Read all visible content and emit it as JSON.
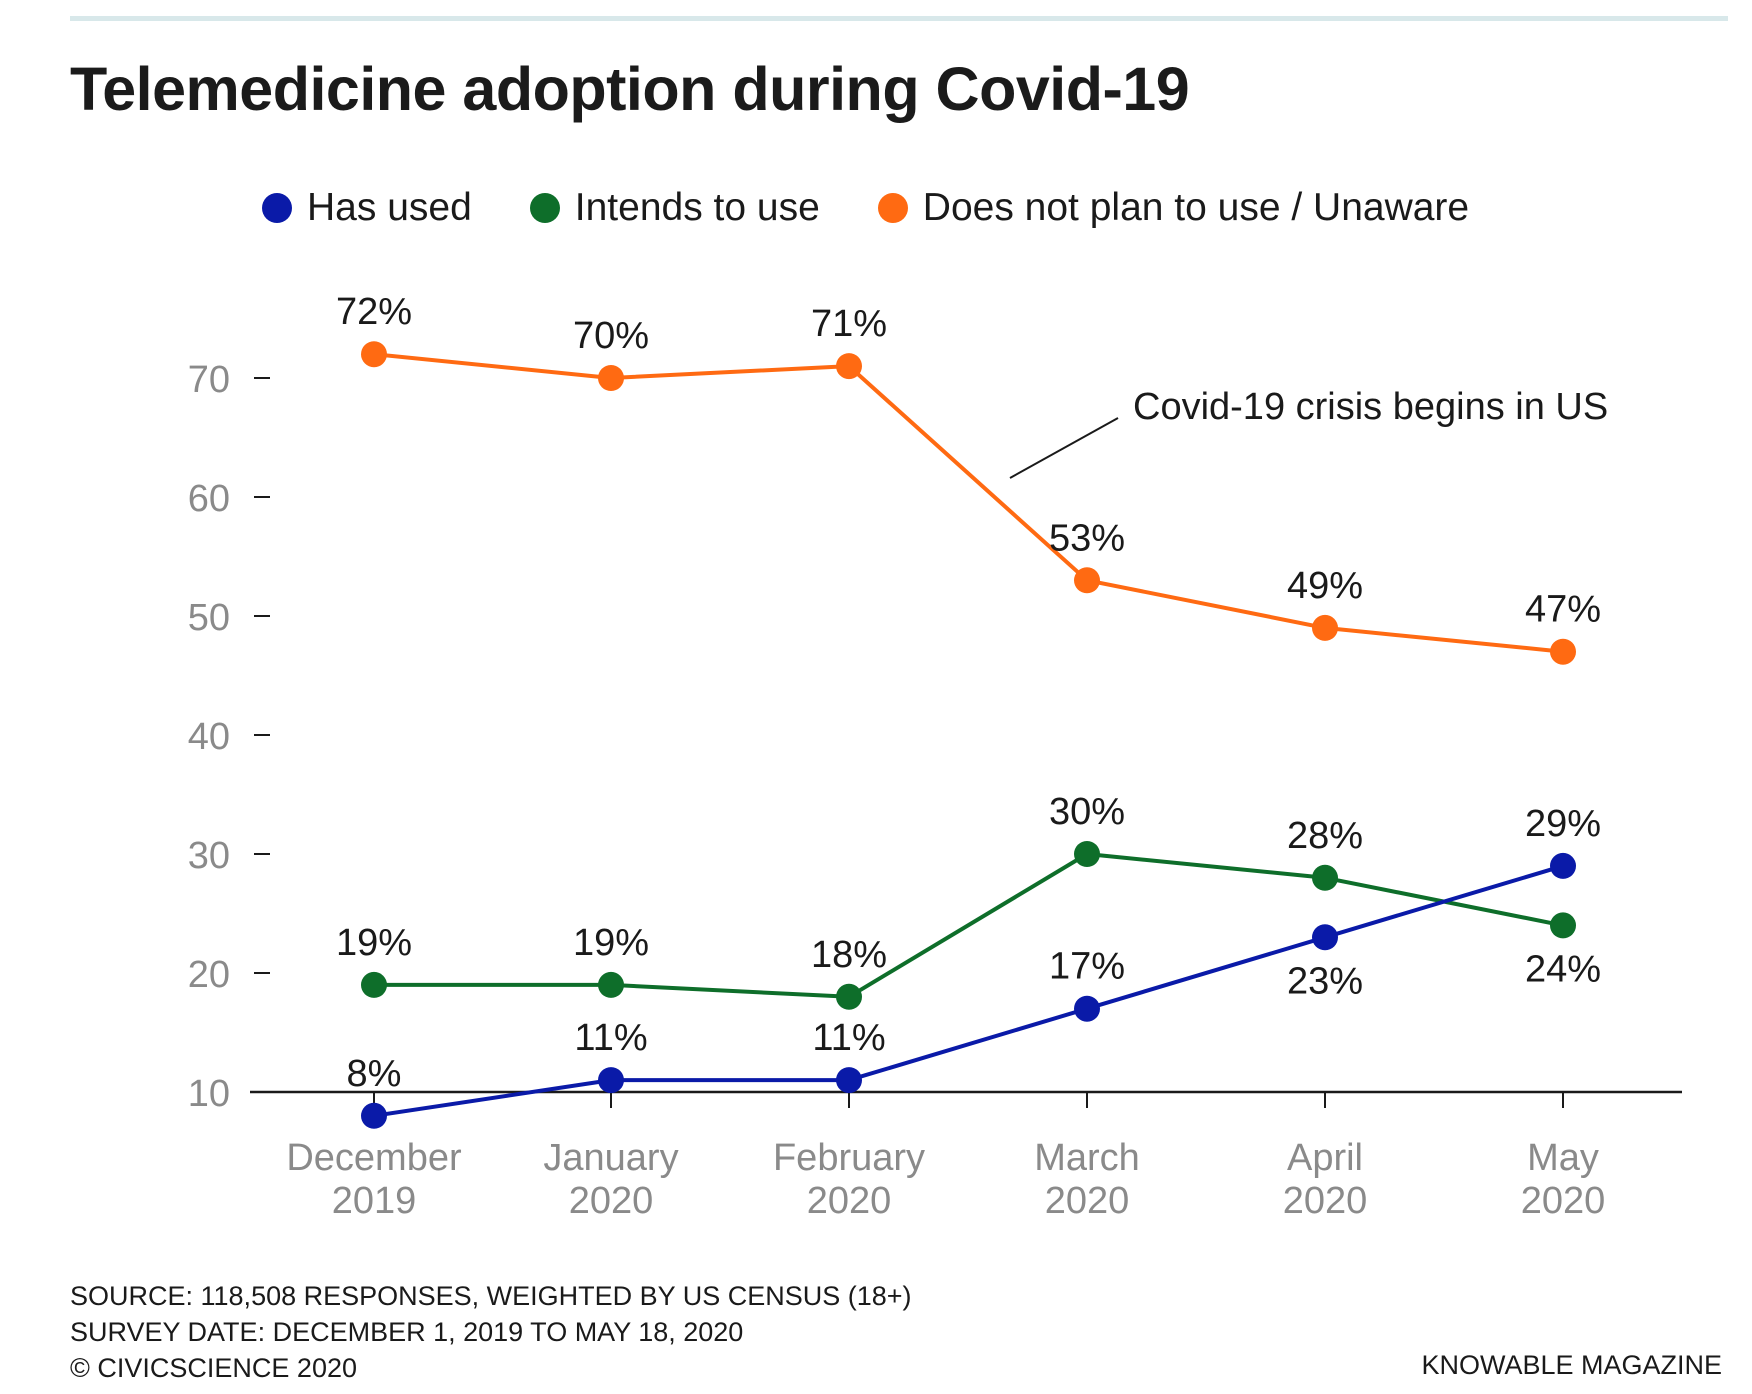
{
  "title": "Telemedicine adoption during Covid-19",
  "legend": [
    {
      "label": "Has used",
      "color": "#0a1aa8"
    },
    {
      "label": "Intends to use",
      "color": "#0e6e2a"
    },
    {
      "label": "Does not plan to use / Unaware",
      "color": "#ff6a12"
    }
  ],
  "chart_data": {
    "type": "line",
    "title": "Telemedicine adoption during Covid-19",
    "categories": [
      [
        "December",
        "2019"
      ],
      [
        "January",
        "2020"
      ],
      [
        "February",
        "2020"
      ],
      [
        "March",
        "2020"
      ],
      [
        "April",
        "2020"
      ],
      [
        "May",
        "2020"
      ]
    ],
    "yticks": [
      10,
      20,
      30,
      40,
      50,
      60,
      70
    ],
    "ylim": [
      10,
      75
    ],
    "grid": false,
    "legend_position": "top",
    "series": [
      {
        "name": "Has used",
        "color": "#0a1aa8",
        "values": [
          8,
          11,
          11,
          17,
          23,
          29
        ],
        "labels": [
          "8%",
          "11%",
          "11%",
          "17%",
          "23%",
          "29%"
        ]
      },
      {
        "name": "Intends to use",
        "color": "#0e6e2a",
        "values": [
          19,
          19,
          18,
          30,
          28,
          24
        ],
        "labels": [
          "19%",
          "19%",
          "18%",
          "30%",
          "28%",
          "24%"
        ]
      },
      {
        "name": "Does not plan to use / Unaware",
        "color": "#ff6a12",
        "values": [
          72,
          70,
          71,
          53,
          49,
          47
        ],
        "labels": [
          "72%",
          "70%",
          "71%",
          "53%",
          "49%",
          "47%"
        ]
      }
    ],
    "annotation": "Covid-19 crisis begins in US"
  },
  "footer": {
    "source": "SOURCE: 118,508 RESPONSES, WEIGHTED BY US CENSUS (18+)",
    "survey_date": "SURVEY DATE: DECEMBER 1, 2019 TO MAY 18, 2020",
    "copyright": "© CIVICSCIENCE 2020",
    "credit": "KNOWABLE MAGAZINE"
  }
}
